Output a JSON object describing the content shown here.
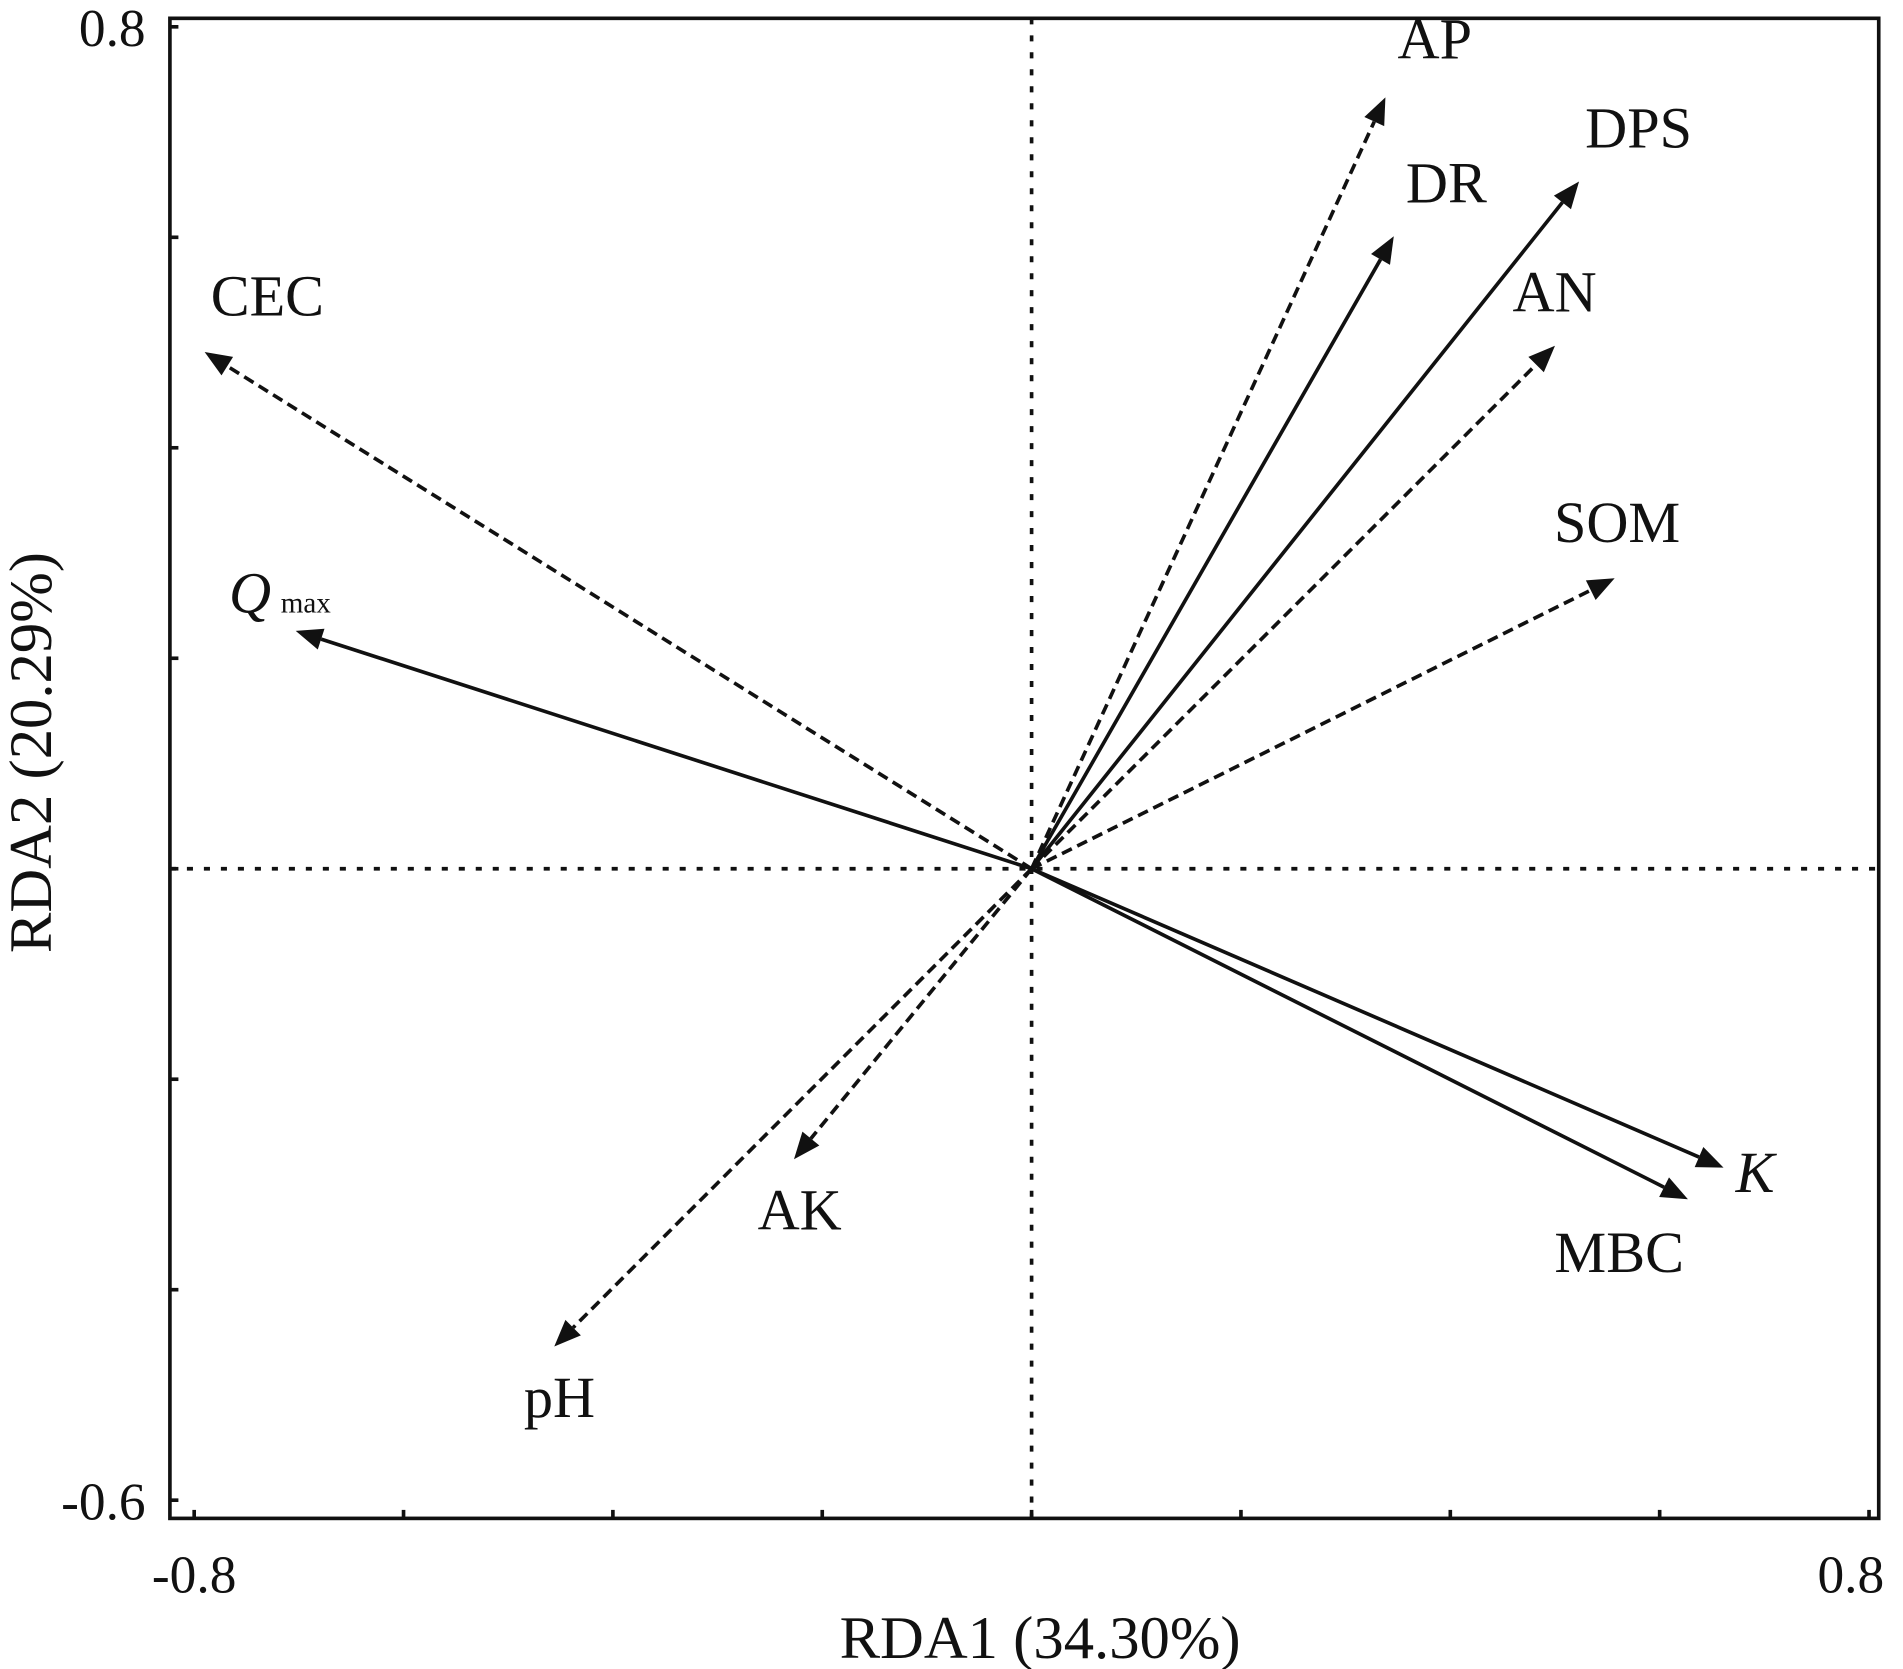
{
  "chart_data": {
    "type": "biplot",
    "title": "",
    "xlabel": "RDA1 (34.30%)",
    "ylabel": "RDA2 (20.29%)",
    "xlim": [
      -0.8,
      0.8
    ],
    "ylim": [
      -0.6,
      0.8
    ],
    "x_tick_labels": [
      "-0.8",
      "0.8"
    ],
    "y_tick_labels": [
      "0.8",
      "-0.6"
    ],
    "grid": false,
    "reference_lines": {
      "x": 0,
      "y": 0,
      "style": "dotted"
    },
    "vectors": [
      {
        "name": "AP",
        "x": 0.338,
        "y": 0.733,
        "style": "dashed"
      },
      {
        "name": "DR",
        "x": 0.346,
        "y": 0.601,
        "style": "solid"
      },
      {
        "name": "DPS",
        "x": 0.523,
        "y": 0.653,
        "style": "solid"
      },
      {
        "name": "AN",
        "x": 0.5,
        "y": 0.497,
        "style": "dashed"
      },
      {
        "name": "SOM",
        "x": 0.557,
        "y": 0.276,
        "style": "dashed"
      },
      {
        "name": "CEC",
        "x": -0.79,
        "y": 0.491,
        "style": "dashed"
      },
      {
        "name": "Q",
        "subscript": "max",
        "x": -0.703,
        "y": 0.226,
        "style": "solid",
        "italic": true
      },
      {
        "name": "K",
        "x": 0.661,
        "y": -0.284,
        "style": "solid",
        "italic": true
      },
      {
        "name": "MBC",
        "x": 0.627,
        "y": -0.314,
        "style": "solid"
      },
      {
        "name": "AK",
        "x": -0.227,
        "y": -0.276,
        "style": "dashed"
      },
      {
        "name": "pH",
        "x": -0.456,
        "y": -0.454,
        "style": "dashed"
      }
    ]
  }
}
